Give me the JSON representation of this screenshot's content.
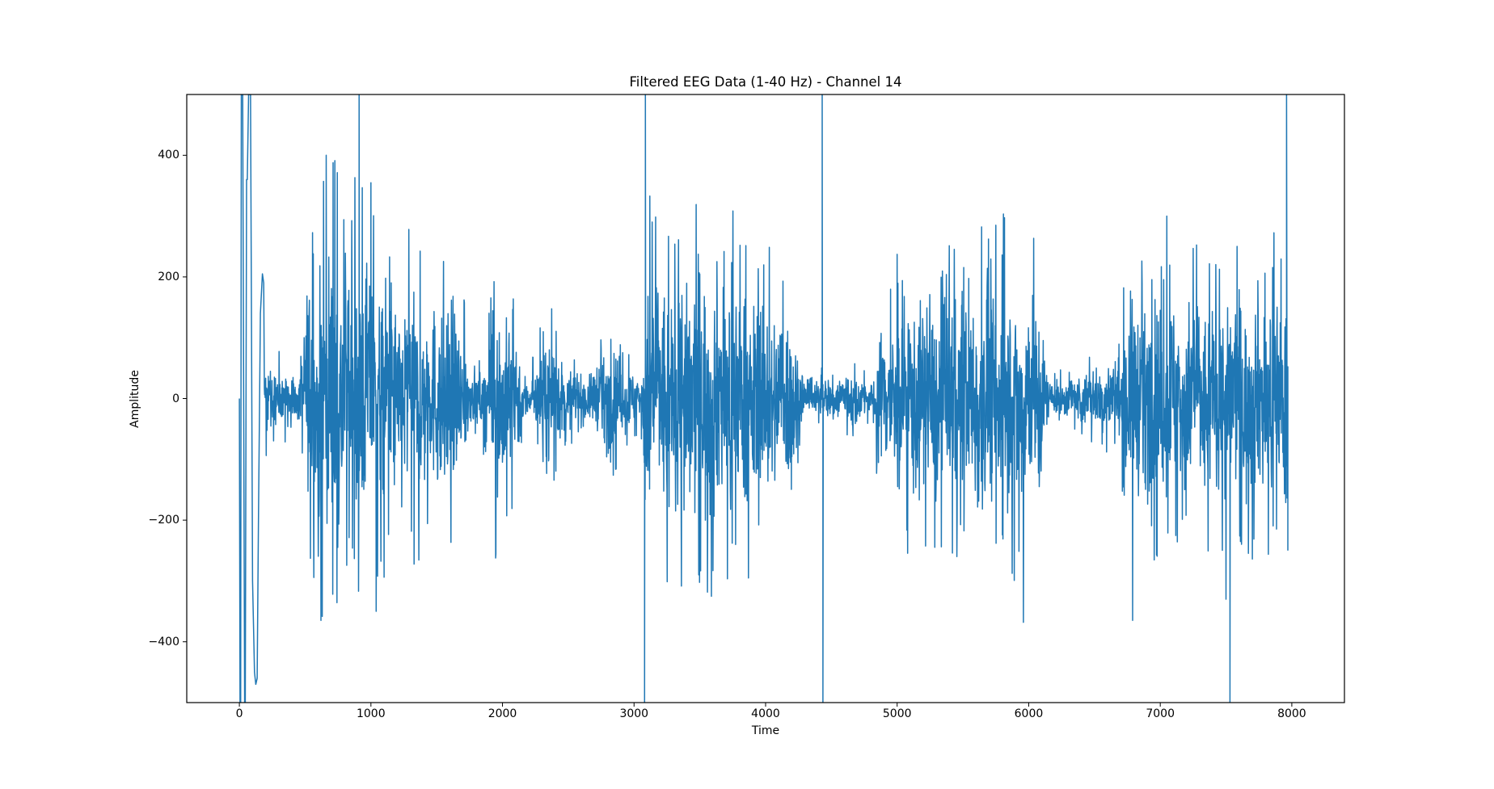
{
  "chart_data": {
    "type": "line",
    "title": "Filtered EEG Data (1-40 Hz) - Channel 14",
    "xlabel": "Time",
    "ylabel": "Amplitude",
    "xlim": [
      -400,
      8400
    ],
    "ylim": [
      -500,
      500
    ],
    "xticks": [
      0,
      1000,
      2000,
      3000,
      4000,
      5000,
      6000,
      7000,
      8000
    ],
    "xtick_labels": [
      "0",
      "1000",
      "2000",
      "3000",
      "4000",
      "5000",
      "6000",
      "7000",
      "8000"
    ],
    "yticks": [
      400,
      200,
      0,
      -200,
      -400
    ],
    "ytick_labels": [
      "400",
      "200",
      "0",
      "−200",
      "−400"
    ],
    "grid": false,
    "legend": null,
    "series": [
      {
        "name": "Channel 14",
        "color": "#1f77b4",
        "x_range": [
          0,
          7970
        ],
        "description": "Band-pass filtered EEG trace with bursts of high activity and quieter intervals; large clipped artifacts near t=0-90, 910, 3080, 4430, 7530, 7960",
        "envelope": [
          {
            "x": 0,
            "amp": 0
          },
          {
            "x": 200,
            "amp": 60
          },
          {
            "x": 300,
            "amp": 40
          },
          {
            "x": 450,
            "amp": 40
          },
          {
            "x": 520,
            "amp": 150
          },
          {
            "x": 700,
            "amp": 200
          },
          {
            "x": 1000,
            "amp": 170
          },
          {
            "x": 1400,
            "amp": 130
          },
          {
            "x": 1700,
            "amp": 120
          },
          {
            "x": 1750,
            "amp": 40
          },
          {
            "x": 1850,
            "amp": 40
          },
          {
            "x": 1950,
            "amp": 140
          },
          {
            "x": 2100,
            "amp": 90
          },
          {
            "x": 2200,
            "amp": 20
          },
          {
            "x": 2350,
            "amp": 90
          },
          {
            "x": 2500,
            "amp": 40
          },
          {
            "x": 2650,
            "amp": 30
          },
          {
            "x": 2800,
            "amp": 70
          },
          {
            "x": 3050,
            "amp": 30
          },
          {
            "x": 3100,
            "amp": 160
          },
          {
            "x": 3500,
            "amp": 180
          },
          {
            "x": 4200,
            "amp": 120
          },
          {
            "x": 4300,
            "amp": 20
          },
          {
            "x": 4650,
            "amp": 40
          },
          {
            "x": 4800,
            "amp": 20
          },
          {
            "x": 4900,
            "amp": 120
          },
          {
            "x": 5700,
            "amp": 160
          },
          {
            "x": 6100,
            "amp": 140
          },
          {
            "x": 6150,
            "amp": 20
          },
          {
            "x": 6650,
            "amp": 50
          },
          {
            "x": 6750,
            "amp": 130
          },
          {
            "x": 7400,
            "amp": 140
          },
          {
            "x": 7960,
            "amp": 140
          }
        ],
        "artifacts": [
          {
            "x": 5,
            "y": -500
          },
          {
            "x": 15,
            "y": 500
          },
          {
            "x": 40,
            "y": -500
          },
          {
            "x": 55,
            "y": 360
          },
          {
            "x": 70,
            "y": 500
          },
          {
            "x": 125,
            "y": -470
          },
          {
            "x": 160,
            "y": 140
          },
          {
            "x": 185,
            "y": 205
          },
          {
            "x": 910,
            "y": 500
          },
          {
            "x": 3080,
            "y": -500
          },
          {
            "x": 3085,
            "y": 500
          },
          {
            "x": 4430,
            "y": 500
          },
          {
            "x": 4435,
            "y": -500
          },
          {
            "x": 7530,
            "y": -500
          },
          {
            "x": 7960,
            "y": 500
          },
          {
            "x": 7970,
            "y": -245
          }
        ],
        "notable_peaks": [
          {
            "x": 660,
            "y": 400
          },
          {
            "x": 620,
            "y": -365
          },
          {
            "x": 1000,
            "y": 355
          },
          {
            "x": 1040,
            "y": -350
          },
          {
            "x": 3120,
            "y": 333
          },
          {
            "x": 5750,
            "y": 285
          },
          {
            "x": 5960,
            "y": -368
          },
          {
            "x": 6790,
            "y": -365
          },
          {
            "x": 7050,
            "y": 300
          },
          {
            "x": 7500,
            "y": -330
          }
        ]
      }
    ]
  }
}
